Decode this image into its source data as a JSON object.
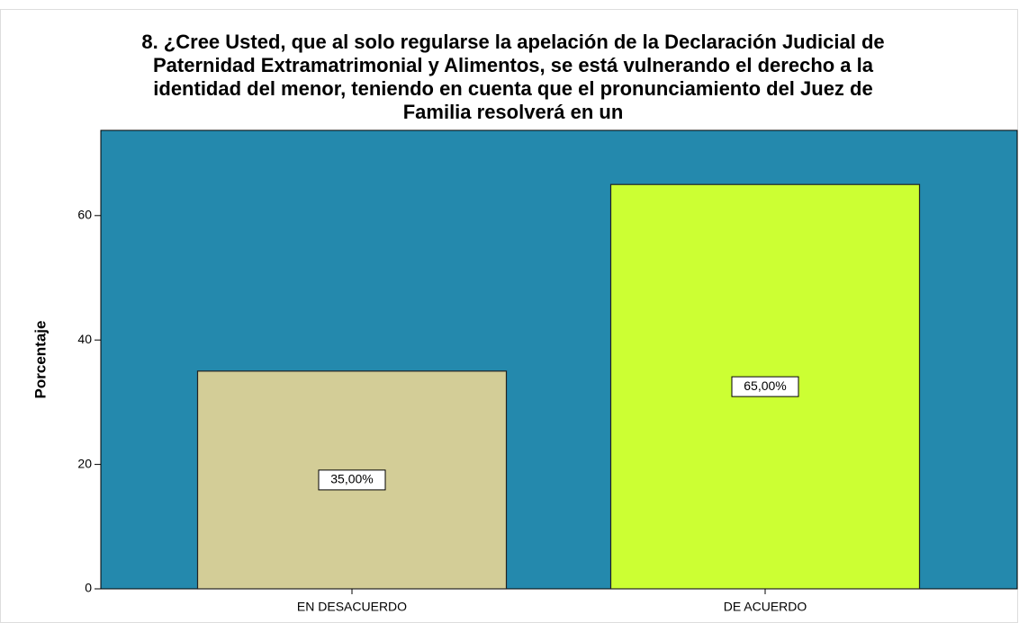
{
  "chart_data": {
    "type": "bar",
    "title": [
      "8. ¿Cree Usted, que al solo regularse la apelación de la Declaración Judicial de",
      "Paternidad Extramatrimonial y Alimentos, se está vulnerando el derecho a la",
      "identidad del menor, teniendo en cuenta que el pronunciamiento del Juez de",
      "Familia resolverá en un"
    ],
    "y_label": "Porcentaje",
    "categories": [
      "EN DESACUERDO",
      "DE ACUERDO"
    ],
    "values": [
      35,
      65
    ],
    "value_labels": [
      "35,00%",
      "65,00%"
    ],
    "colors": [
      "#d3cd97",
      "#ccff33"
    ],
    "background": "#2489ad",
    "ylim": [
      0,
      73.7
    ],
    "yticks": [
      0,
      20,
      40,
      60
    ]
  }
}
